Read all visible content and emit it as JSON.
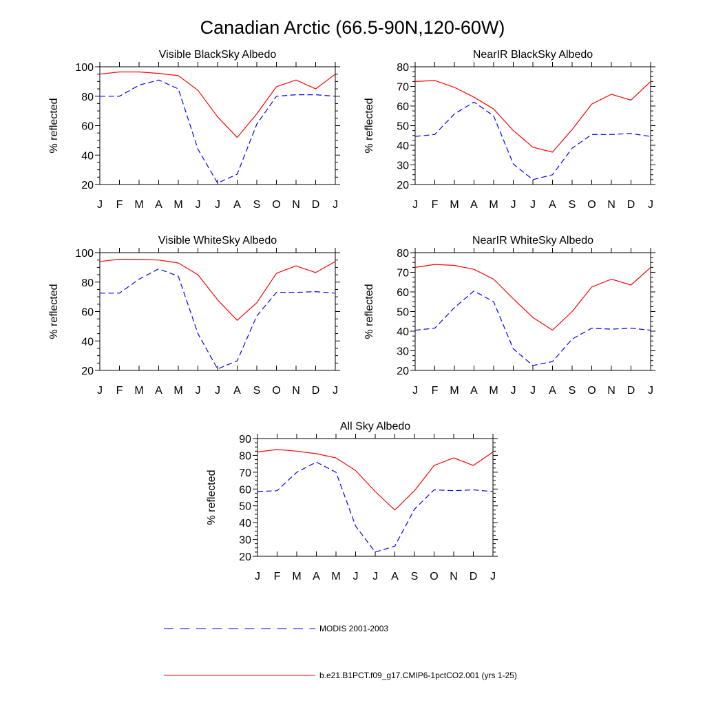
{
  "title": "Canadian Arctic (66.5-90N,120-60W)",
  "legend": [
    {
      "label": "MODIS 2001-2003",
      "color": "#0000ff",
      "dash": "dashed"
    },
    {
      "label": "b.e21.B1PCT.f09_g17.CMIP6-1pctCO2.001 (yrs 1-25)",
      "color": "#ff0000",
      "dash": "solid"
    }
  ],
  "chart_data": [
    {
      "type": "line",
      "title": "Visible BlackSky Albedo",
      "ylabel": "% reflected",
      "categories": [
        "J",
        "F",
        "M",
        "A",
        "M",
        "J",
        "J",
        "A",
        "S",
        "O",
        "N",
        "D",
        "J"
      ],
      "ylim": [
        20,
        100
      ],
      "yticks": [
        20,
        40,
        60,
        80,
        100
      ],
      "series": [
        {
          "key": "modis",
          "values": [
            80,
            80,
            87.5,
            91,
            85,
            44,
            21,
            27,
            61,
            80,
            81,
            81,
            80
          ]
        },
        {
          "key": "model",
          "values": [
            95,
            96.5,
            96.5,
            95.5,
            94,
            84,
            66,
            52,
            68,
            86.5,
            91,
            85,
            95
          ]
        }
      ]
    },
    {
      "type": "line",
      "title": "NearIR BlackSky Albedo",
      "ylabel": "% reflected",
      "categories": [
        "J",
        "F",
        "M",
        "A",
        "M",
        "J",
        "J",
        "A",
        "S",
        "O",
        "N",
        "D",
        "J"
      ],
      "ylim": [
        20,
        80
      ],
      "yticks": [
        20,
        30,
        40,
        50,
        60,
        70,
        80
      ],
      "series": [
        {
          "key": "modis",
          "values": [
            44.5,
            45.5,
            56,
            62,
            55,
            30.5,
            22.5,
            25,
            38.5,
            45.5,
            45.5,
            46,
            44.5
          ]
        },
        {
          "key": "model",
          "values": [
            72.5,
            73,
            69.5,
            64.5,
            58.5,
            47.5,
            39,
            36.5,
            48,
            61,
            66,
            63,
            72.5
          ]
        }
      ]
    },
    {
      "type": "line",
      "title": "Visible WhiteSky Albedo",
      "ylabel": "% reflected",
      "categories": [
        "J",
        "F",
        "M",
        "A",
        "M",
        "J",
        "J",
        "A",
        "S",
        "O",
        "N",
        "D",
        "J"
      ],
      "ylim": [
        20,
        100
      ],
      "yticks": [
        20,
        40,
        60,
        80,
        100
      ],
      "series": [
        {
          "key": "modis",
          "values": [
            72.5,
            72.5,
            82,
            89,
            84,
            45,
            21,
            26.5,
            57,
            73,
            73,
            73.5,
            72.5
          ]
        },
        {
          "key": "model",
          "values": [
            94,
            95.5,
            95.5,
            95,
            93,
            85,
            68,
            54,
            66,
            86,
            91,
            86.5,
            94
          ]
        }
      ]
    },
    {
      "type": "line",
      "title": "NearIR WhiteSky Albedo",
      "ylabel": "% reflected",
      "categories": [
        "J",
        "F",
        "M",
        "A",
        "M",
        "J",
        "J",
        "A",
        "S",
        "O",
        "N",
        "D",
        "J"
      ],
      "ylim": [
        20,
        80
      ],
      "yticks": [
        20,
        30,
        40,
        50,
        60,
        70,
        80
      ],
      "series": [
        {
          "key": "modis",
          "values": [
            40.5,
            41.5,
            52,
            60.5,
            55,
            31,
            22.5,
            24.5,
            36,
            41.5,
            41,
            41.5,
            40.5
          ]
        },
        {
          "key": "model",
          "values": [
            72.5,
            74,
            73.5,
            71.5,
            66.5,
            56.5,
            47,
            40.5,
            50,
            62.5,
            66.5,
            63.5,
            72.5
          ]
        }
      ]
    },
    {
      "type": "line",
      "title": "All Sky Albedo",
      "ylabel": "% reflected",
      "categories": [
        "J",
        "F",
        "M",
        "A",
        "M",
        "J",
        "J",
        "A",
        "S",
        "O",
        "N",
        "D",
        "J"
      ],
      "ylim": [
        20,
        90
      ],
      "yticks": [
        20,
        30,
        40,
        50,
        60,
        70,
        80,
        90
      ],
      "series": [
        {
          "key": "modis",
          "values": [
            58.5,
            59,
            70,
            76,
            70,
            38,
            22.5,
            26,
            48,
            59.5,
            59,
            59.5,
            58.5
          ]
        },
        {
          "key": "model",
          "values": [
            82,
            83.5,
            82.5,
            81,
            78.5,
            71,
            58.5,
            47.5,
            59,
            74,
            78.5,
            74,
            82
          ]
        }
      ]
    }
  ]
}
